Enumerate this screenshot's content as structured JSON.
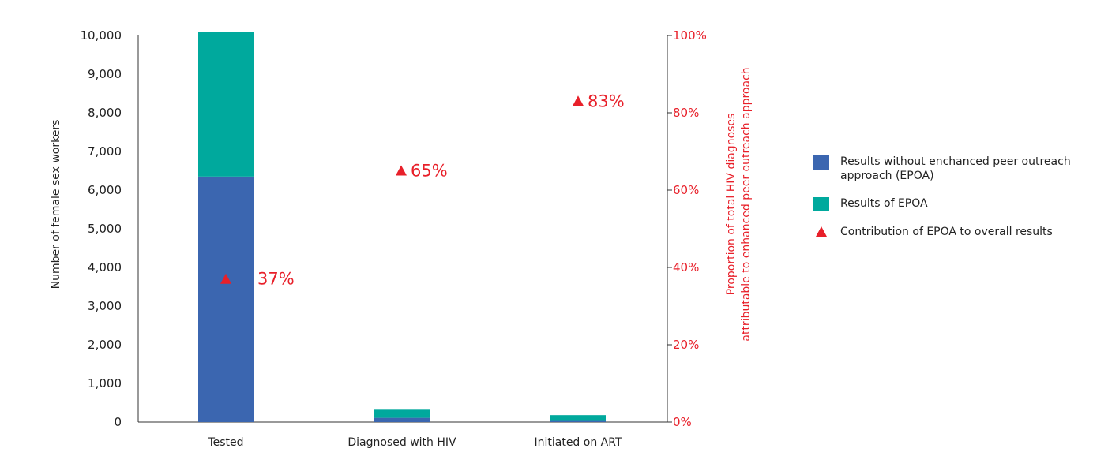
{
  "colors": {
    "without_epoa": "#3b66b0",
    "epoa": "#00a99d",
    "contribution": "#e8202a",
    "axis": "#333333"
  },
  "chart_data": {
    "type": "bar",
    "stacked": true,
    "categories": [
      "Tested",
      "Diagnosed with HIV",
      "Initiated on ART"
    ],
    "series": [
      {
        "name": "Results without enchanced peer outreach approach (EPOA)",
        "values": [
          6350,
          110,
          30
        ]
      },
      {
        "name": "Results of EPOA",
        "values": [
          3750,
          210,
          150
        ]
      }
    ],
    "overlay_series": {
      "name": "Contribution of EPOA to overall results",
      "axis": "right",
      "values": [
        37,
        65,
        83
      ],
      "labels": [
        "37%",
        "65%",
        "83%"
      ]
    },
    "left_axis": {
      "label": "Number of female sex workers",
      "ylim": [
        0,
        10000
      ],
      "ticks": [
        0,
        1000,
        2000,
        3000,
        4000,
        5000,
        6000,
        7000,
        8000,
        9000,
        10000
      ],
      "tick_labels": [
        "0",
        "1,000",
        "2,000",
        "3,000",
        "4,000",
        "5,000",
        "6,000",
        "7,000",
        "8,000",
        "9,000",
        "10,000"
      ]
    },
    "right_axis": {
      "label_line1": "Proportion of total HIV diagnoses",
      "label_line2": "attributable to enhanced peer outreach approach",
      "ylim": [
        0,
        100
      ],
      "ticks": [
        0,
        20,
        40,
        60,
        80,
        100
      ],
      "tick_labels": [
        "0%",
        "20%",
        "40%",
        "60%",
        "80%",
        "100%"
      ]
    },
    "legend_position": "right"
  },
  "legend": {
    "items": [
      {
        "label": "Results without enchanced peer outreach approach (EPOA)"
      },
      {
        "label": "Results of EPOA"
      },
      {
        "label": "Contribution of EPOA to overall results"
      }
    ]
  }
}
